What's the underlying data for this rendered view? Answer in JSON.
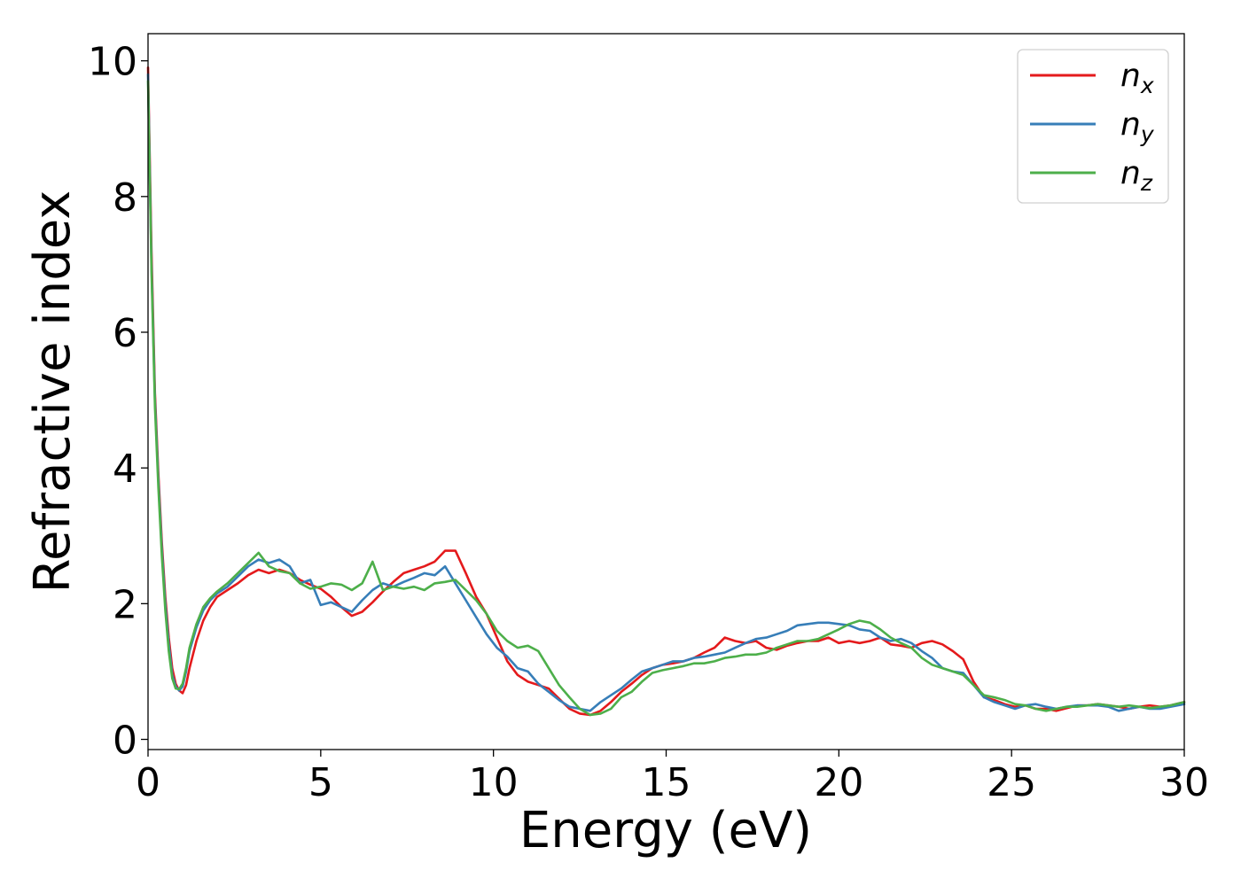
{
  "chart_data": {
    "type": "line",
    "title": "",
    "xlabel": "Energy (eV)",
    "ylabel": "Refractive index",
    "xlim": [
      0,
      30
    ],
    "ylim": [
      -0.15,
      10.4
    ],
    "xticks": [
      0,
      5,
      10,
      15,
      20,
      25,
      30
    ],
    "yticks": [
      0,
      2,
      4,
      6,
      8,
      10
    ],
    "grid": false,
    "legend_position": "top-right",
    "series": [
      {
        "name": "n",
        "subscript": "x",
        "color": "#e41a1c",
        "x": [
          0,
          0.1,
          0.2,
          0.3,
          0.4,
          0.5,
          0.6,
          0.7,
          0.8,
          0.9,
          1.0,
          1.1,
          1.2,
          1.4,
          1.6,
          1.8,
          2.0,
          2.3,
          2.6,
          2.9,
          3.2,
          3.5,
          3.8,
          4.1,
          4.4,
          4.7,
          5.0,
          5.3,
          5.6,
          5.9,
          6.2,
          6.5,
          6.8,
          7.1,
          7.4,
          7.7,
          8.0,
          8.3,
          8.6,
          8.9,
          9.2,
          9.5,
          9.8,
          10.1,
          10.4,
          10.7,
          11.0,
          11.3,
          11.6,
          11.9,
          12.2,
          12.5,
          12.8,
          13.1,
          13.4,
          13.7,
          14.0,
          14.3,
          14.6,
          14.9,
          15.2,
          15.5,
          15.8,
          16.1,
          16.4,
          16.7,
          17.0,
          17.3,
          17.6,
          17.9,
          18.2,
          18.5,
          18.8,
          19.1,
          19.4,
          19.7,
          20.0,
          20.3,
          20.6,
          20.9,
          21.2,
          21.5,
          21.8,
          22.1,
          22.4,
          22.7,
          23.0,
          23.3,
          23.6,
          23.9,
          24.2,
          24.5,
          24.8,
          25.1,
          25.4,
          25.7,
          26.0,
          26.3,
          26.6,
          26.9,
          27.2,
          27.5,
          27.8,
          28.1,
          28.4,
          28.7,
          29.0,
          29.3,
          29.6,
          30.0
        ],
        "y": [
          9.9,
          7.2,
          5.1,
          3.9,
          2.9,
          2.1,
          1.5,
          1.05,
          0.82,
          0.72,
          0.68,
          0.8,
          1.05,
          1.45,
          1.75,
          1.95,
          2.1,
          2.2,
          2.3,
          2.42,
          2.5,
          2.45,
          2.5,
          2.45,
          2.35,
          2.28,
          2.22,
          2.1,
          1.95,
          1.82,
          1.88,
          2.02,
          2.18,
          2.32,
          2.45,
          2.5,
          2.55,
          2.62,
          2.78,
          2.78,
          2.45,
          2.1,
          1.85,
          1.5,
          1.15,
          0.95,
          0.85,
          0.8,
          0.75,
          0.6,
          0.45,
          0.38,
          0.36,
          0.42,
          0.55,
          0.7,
          0.82,
          0.95,
          1.05,
          1.1,
          1.12,
          1.15,
          1.2,
          1.28,
          1.35,
          1.5,
          1.45,
          1.42,
          1.45,
          1.35,
          1.32,
          1.38,
          1.42,
          1.45,
          1.45,
          1.5,
          1.42,
          1.45,
          1.42,
          1.45,
          1.5,
          1.4,
          1.38,
          1.35,
          1.42,
          1.45,
          1.4,
          1.3,
          1.18,
          0.85,
          0.62,
          0.58,
          0.52,
          0.48,
          0.5,
          0.45,
          0.45,
          0.42,
          0.46,
          0.5,
          0.5,
          0.52,
          0.5,
          0.48,
          0.45,
          0.48,
          0.5,
          0.48,
          0.5,
          0.55
        ]
      },
      {
        "name": "n",
        "subscript": "y",
        "color": "#377eb8",
        "x": [
          0,
          0.1,
          0.2,
          0.3,
          0.4,
          0.5,
          0.6,
          0.7,
          0.8,
          0.9,
          1.0,
          1.1,
          1.2,
          1.4,
          1.6,
          1.8,
          2.0,
          2.3,
          2.6,
          2.9,
          3.2,
          3.5,
          3.8,
          4.1,
          4.4,
          4.7,
          5.0,
          5.3,
          5.6,
          5.9,
          6.2,
          6.5,
          6.8,
          7.1,
          7.4,
          7.7,
          8.0,
          8.3,
          8.6,
          8.9,
          9.2,
          9.5,
          9.8,
          10.1,
          10.4,
          10.7,
          11.0,
          11.3,
          11.6,
          11.9,
          12.2,
          12.5,
          12.8,
          13.1,
          13.4,
          13.7,
          14.0,
          14.3,
          14.6,
          14.9,
          15.2,
          15.5,
          15.8,
          16.1,
          16.4,
          16.7,
          17.0,
          17.3,
          17.6,
          17.9,
          18.2,
          18.5,
          18.8,
          19.1,
          19.4,
          19.7,
          20.0,
          20.3,
          20.6,
          20.9,
          21.2,
          21.5,
          21.8,
          22.1,
          22.4,
          22.7,
          23.0,
          23.3,
          23.6,
          23.9,
          24.2,
          24.5,
          24.8,
          25.1,
          25.4,
          25.7,
          26.0,
          26.3,
          26.6,
          26.9,
          27.2,
          27.5,
          27.8,
          28.1,
          28.4,
          28.7,
          29.0,
          29.3,
          29.6,
          30.0
        ],
        "y": [
          9.8,
          7.0,
          5.0,
          3.8,
          2.8,
          2.0,
          1.4,
          0.95,
          0.78,
          0.72,
          0.78,
          1.0,
          1.3,
          1.65,
          1.9,
          2.05,
          2.15,
          2.25,
          2.4,
          2.55,
          2.65,
          2.6,
          2.65,
          2.55,
          2.3,
          2.35,
          1.98,
          2.02,
          1.95,
          1.88,
          2.05,
          2.2,
          2.3,
          2.25,
          2.32,
          2.38,
          2.45,
          2.42,
          2.55,
          2.3,
          2.05,
          1.8,
          1.55,
          1.35,
          1.22,
          1.05,
          1.0,
          0.82,
          0.7,
          0.58,
          0.48,
          0.45,
          0.42,
          0.55,
          0.65,
          0.75,
          0.88,
          1.0,
          1.05,
          1.1,
          1.15,
          1.15,
          1.2,
          1.22,
          1.25,
          1.28,
          1.35,
          1.42,
          1.48,
          1.5,
          1.55,
          1.6,
          1.68,
          1.7,
          1.72,
          1.72,
          1.7,
          1.68,
          1.62,
          1.6,
          1.5,
          1.45,
          1.48,
          1.42,
          1.3,
          1.2,
          1.05,
          1.0,
          0.98,
          0.8,
          0.62,
          0.55,
          0.5,
          0.45,
          0.5,
          0.52,
          0.48,
          0.45,
          0.48,
          0.5,
          0.5,
          0.5,
          0.48,
          0.42,
          0.45,
          0.48,
          0.45,
          0.45,
          0.48,
          0.52
        ]
      },
      {
        "name": "n",
        "subscript": "z",
        "color": "#4daf4a",
        "x": [
          0,
          0.1,
          0.2,
          0.3,
          0.4,
          0.5,
          0.6,
          0.7,
          0.8,
          0.9,
          1.0,
          1.1,
          1.2,
          1.4,
          1.6,
          1.8,
          2.0,
          2.3,
          2.6,
          2.9,
          3.2,
          3.5,
          3.8,
          4.1,
          4.4,
          4.7,
          5.0,
          5.3,
          5.6,
          5.9,
          6.2,
          6.5,
          6.8,
          7.1,
          7.4,
          7.7,
          8.0,
          8.3,
          8.6,
          8.9,
          9.2,
          9.5,
          9.8,
          10.1,
          10.4,
          10.7,
          11.0,
          11.3,
          11.6,
          11.9,
          12.2,
          12.5,
          12.8,
          13.1,
          13.4,
          13.7,
          14.0,
          14.3,
          14.6,
          14.9,
          15.2,
          15.5,
          15.8,
          16.1,
          16.4,
          16.7,
          17.0,
          17.3,
          17.6,
          17.9,
          18.2,
          18.5,
          18.8,
          19.1,
          19.4,
          19.7,
          20.0,
          20.3,
          20.6,
          20.9,
          21.2,
          21.5,
          21.8,
          22.1,
          22.4,
          22.7,
          23.0,
          23.3,
          23.6,
          23.9,
          24.2,
          24.5,
          24.8,
          25.1,
          25.4,
          25.7,
          26.0,
          26.3,
          26.6,
          26.9,
          27.2,
          27.5,
          27.8,
          28.1,
          28.4,
          28.7,
          29.0,
          29.3,
          29.6,
          30.0
        ],
        "y": [
          9.7,
          6.9,
          4.9,
          3.7,
          2.7,
          1.9,
          1.3,
          0.9,
          0.75,
          0.74,
          0.82,
          1.05,
          1.35,
          1.7,
          1.95,
          2.08,
          2.18,
          2.3,
          2.45,
          2.6,
          2.75,
          2.55,
          2.48,
          2.45,
          2.3,
          2.22,
          2.25,
          2.3,
          2.28,
          2.2,
          2.3,
          2.62,
          2.2,
          2.25,
          2.22,
          2.25,
          2.2,
          2.3,
          2.32,
          2.35,
          2.2,
          2.05,
          1.85,
          1.6,
          1.45,
          1.35,
          1.38,
          1.3,
          1.05,
          0.8,
          0.62,
          0.45,
          0.36,
          0.38,
          0.45,
          0.62,
          0.7,
          0.85,
          0.98,
          1.02,
          1.05,
          1.08,
          1.12,
          1.12,
          1.15,
          1.2,
          1.22,
          1.25,
          1.25,
          1.28,
          1.35,
          1.4,
          1.45,
          1.45,
          1.48,
          1.55,
          1.62,
          1.7,
          1.75,
          1.72,
          1.62,
          1.5,
          1.42,
          1.35,
          1.2,
          1.1,
          1.05,
          1.0,
          0.95,
          0.8,
          0.65,
          0.62,
          0.58,
          0.52,
          0.5,
          0.45,
          0.42,
          0.45,
          0.48,
          0.48,
          0.5,
          0.52,
          0.5,
          0.48,
          0.5,
          0.48,
          0.46,
          0.48,
          0.5,
          0.55
        ]
      }
    ]
  }
}
